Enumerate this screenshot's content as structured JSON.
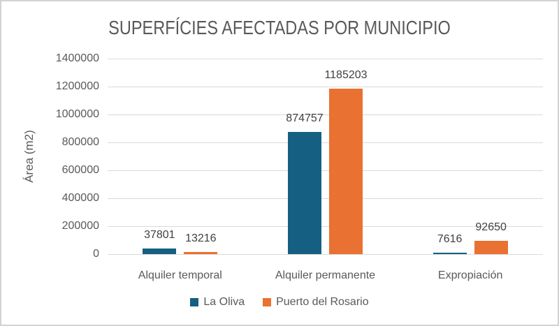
{
  "window": {
    "background_color": "#FFFFFF",
    "border_color": "#D2D2D2"
  },
  "chart_data": {
    "type": "bar",
    "title": "SUPERFÍCIES AFECTADAS POR MUNICIPIO",
    "ylabel": "Área (m2)",
    "xlabel": "",
    "categories": [
      "Alquiler temporal",
      "Alquiler permanente",
      "Expropiación"
    ],
    "series": [
      {
        "name": "La Oliva",
        "color": "#156082",
        "values": [
          37801,
          874757,
          7616
        ]
      },
      {
        "name": "Puerto del Rosario",
        "color": "#E97132",
        "values": [
          13216,
          1185203,
          92650
        ]
      }
    ],
    "ylim": [
      0,
      1400000
    ],
    "yticks": [
      0,
      200000,
      400000,
      600000,
      800000,
      1000000,
      1200000,
      1400000
    ],
    "grid": "horizontal",
    "gridline_color": "#D9D9D9",
    "data_labels": true,
    "legend_position": "bottom",
    "title_color": "#595959",
    "axis_text_color": "#595959",
    "data_label_color": "#404040"
  }
}
